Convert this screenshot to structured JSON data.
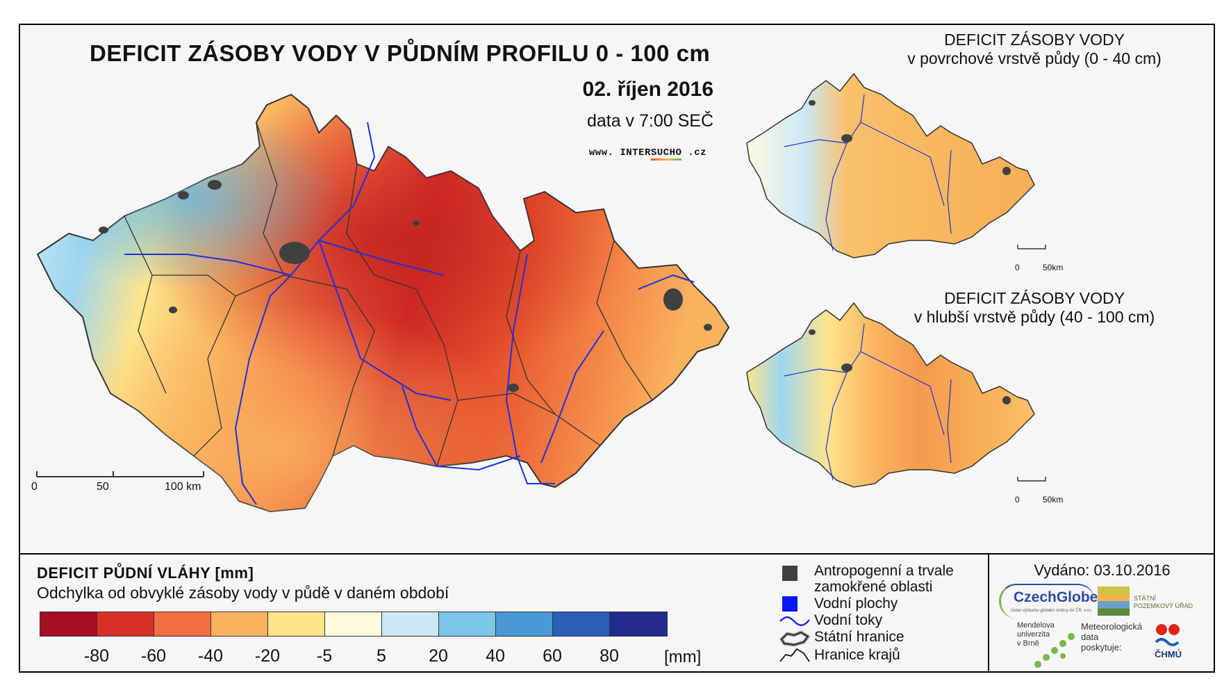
{
  "header": {
    "title": "DEFICIT ZÁSOBY VODY V PŮDNÍM PROFILU 0 - 100 cm",
    "date": "02. říjen 2016",
    "data_time": "data v 7:00 SEČ",
    "website_prefix": "www. INTER",
    "website_highlight": "SUCHO",
    "website_suffix": " .cz"
  },
  "inset_top": {
    "title_line1": "DEFICIT ZÁSOBY VODY",
    "title_line2": "v povrchové vrstvě půdy (0 - 40 cm)",
    "scale_0": "0",
    "scale_50": "50km"
  },
  "inset_bottom": {
    "title_line1": "DEFICIT ZÁSOBY VODY",
    "title_line2": "v hlubší vrstvě půdy (40 - 100 cm)",
    "scale_0": "0",
    "scale_50": "50km"
  },
  "main_scale": {
    "s0": "0",
    "s50": "50",
    "s100": "100 km"
  },
  "legend": {
    "title": "DEFICIT PŮDNÍ VLÁHY [mm]",
    "subtitle": "Odchylka od obvyklé zásoby vody v půdě v daném období",
    "unit": "[mm]",
    "colors": [
      "#a50f24",
      "#d73027",
      "#f46d43",
      "#f9b35e",
      "#fde58c",
      "#fffbdf",
      "#cbe9f6",
      "#7cc6ea",
      "#4a98d6",
      "#2a5fb5",
      "#232a8c"
    ],
    "ticks": [
      "-80",
      "-60",
      "-40",
      "-20",
      "-5",
      "5",
      "20",
      "40",
      "60",
      "80"
    ]
  },
  "symbols": {
    "anthropogenic_line1": "Antropogenní a trvale",
    "anthropogenic_line2": "zamokřené oblasti",
    "water_bodies": "Vodní plochy",
    "rivers": "Vodní toky",
    "state_border": "Státní hranice",
    "region_border": "Hranice krajů"
  },
  "credits": {
    "issued": "Vydáno: 03.10.2016",
    "czechglobe": "CzechGlobe",
    "czechglobe_sub": "Ústav výzkumu globální změny AV ČR, v.v.i.",
    "spu_line1": "STÁTNÍ",
    "spu_line2": "POZEMKOVÝ  ÚŘAD",
    "mendel_line1": "Mendelova",
    "mendel_line2": "univerzita",
    "mendel_line3": "v Brně",
    "meteo_line1": "Meteorologická",
    "meteo_line2": "data",
    "meteo_line3": "poskytuje:",
    "chmu": "ČHMÚ"
  }
}
